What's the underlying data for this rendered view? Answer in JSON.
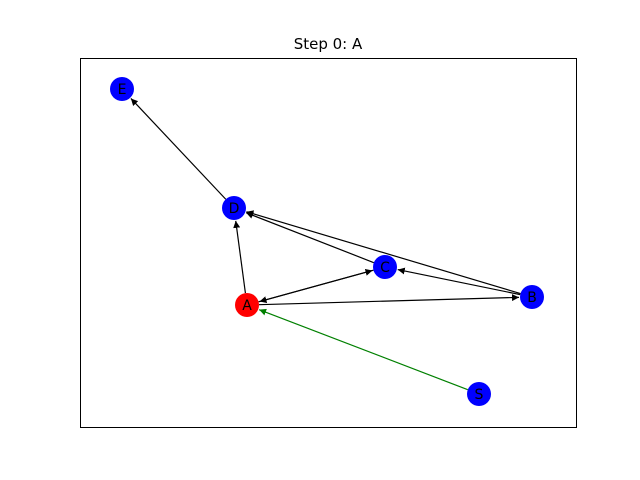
{
  "title": "Step 0: A",
  "nodes": [
    {
      "id": "A",
      "label": "A",
      "color": "#ff0000"
    },
    {
      "id": "B",
      "label": "B",
      "color": "#0000ff"
    },
    {
      "id": "C",
      "label": "C",
      "color": "#0000ff"
    },
    {
      "id": "D",
      "label": "D",
      "color": "#0000ff"
    },
    {
      "id": "E",
      "label": "E",
      "color": "#0000ff"
    },
    {
      "id": "S",
      "label": "S",
      "color": "#0000ff"
    }
  ],
  "edges": [
    {
      "from": "S",
      "to": "A",
      "color": "#008000"
    },
    {
      "from": "A",
      "to": "D",
      "color": "#000000"
    },
    {
      "from": "A",
      "to": "C",
      "color": "#000000"
    },
    {
      "from": "A",
      "to": "B",
      "color": "#000000"
    },
    {
      "from": "C",
      "to": "A",
      "color": "#000000"
    },
    {
      "from": "C",
      "to": "D",
      "color": "#000000"
    },
    {
      "from": "B",
      "to": "C",
      "color": "#000000"
    },
    {
      "from": "B",
      "to": "D",
      "color": "#000000"
    },
    {
      "from": "D",
      "to": "E",
      "color": "#000000"
    }
  ]
}
